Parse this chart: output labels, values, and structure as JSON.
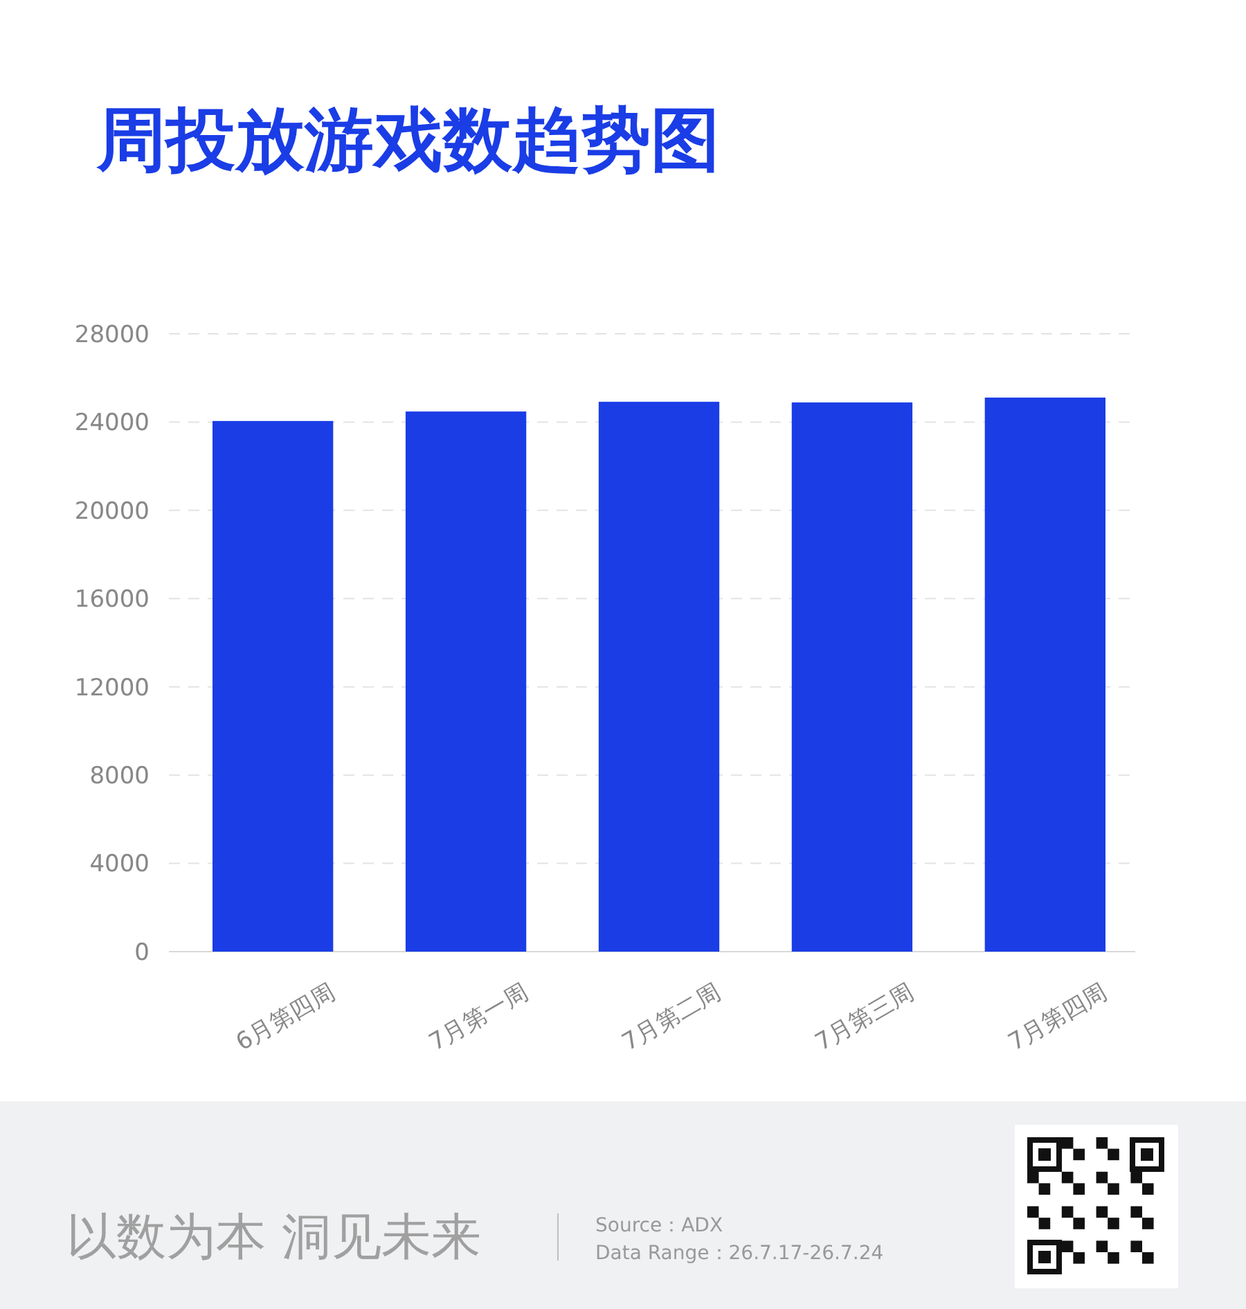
{
  "chart_data": {
    "type": "bar",
    "title": "周投放游戏数趋势图",
    "categories": [
      "6月第四周",
      "7月第一周",
      "7月第二周",
      "7月第三周",
      "7月第四周"
    ],
    "values": [
      24050,
      24480,
      24920,
      24890,
      25110
    ],
    "color": "#1a3de6",
    "ylim": [
      0,
      28000
    ],
    "yticks": [
      0,
      4000,
      8000,
      12000,
      16000,
      20000,
      24000,
      28000
    ],
    "grid": "y",
    "annotations": [
      "以数为本 洞见未来",
      "Source：ADX",
      "Data Range：26.7.17-26.7.24"
    ]
  }
}
